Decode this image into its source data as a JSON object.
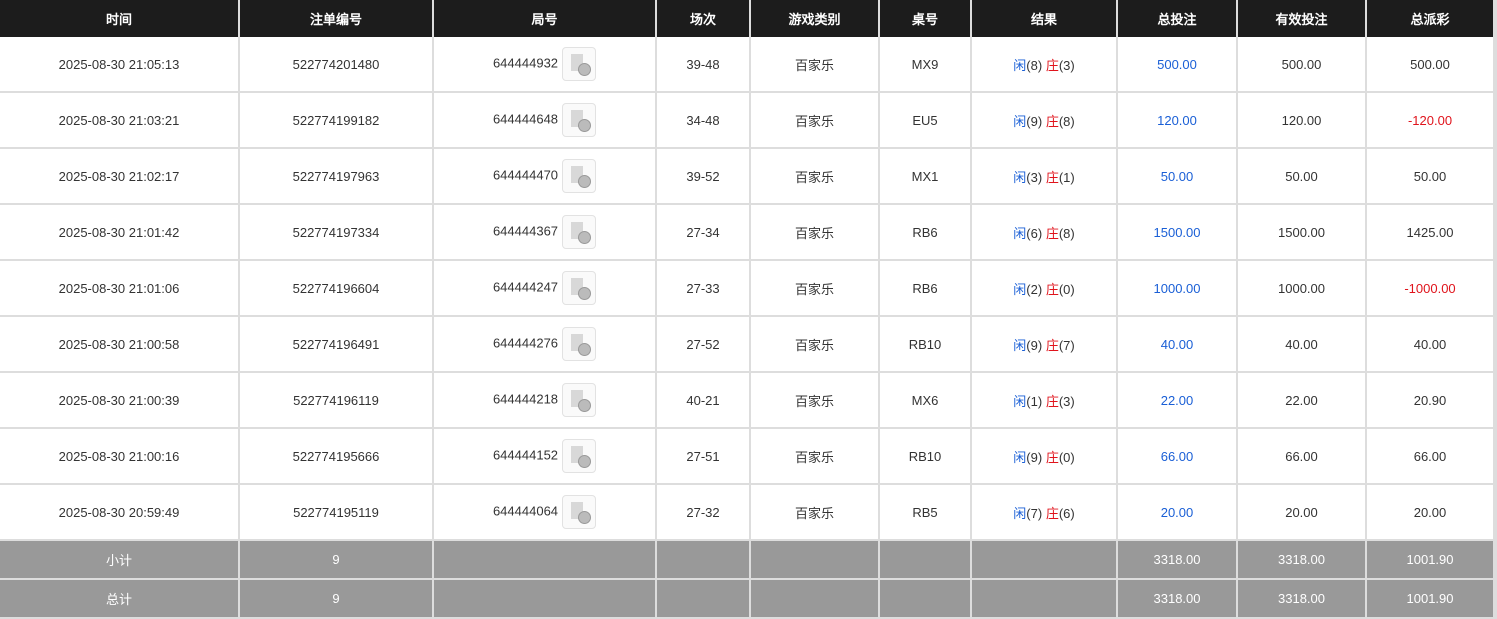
{
  "headers": [
    "时间",
    "注单编号",
    "局号",
    "场次",
    "游戏类别",
    "桌号",
    "结果",
    "总投注",
    "有效投注",
    "总派彩"
  ],
  "rows": [
    {
      "time": "2025-08-30 21:05:13",
      "order": "522774201480",
      "round": "644444932",
      "session": "39-48",
      "game": "百家乐",
      "table": "MX9",
      "player": "闲",
      "player_pts": "(8)",
      "banker": "庄",
      "banker_pts": "(3)",
      "bet": "500.00",
      "valid": "500.00",
      "payout": "500.00",
      "neg": false
    },
    {
      "time": "2025-08-30 21:03:21",
      "order": "522774199182",
      "round": "644444648",
      "session": "34-48",
      "game": "百家乐",
      "table": "EU5",
      "player": "闲",
      "player_pts": "(9)",
      "banker": "庄",
      "banker_pts": "(8)",
      "bet": "120.00",
      "valid": "120.00",
      "payout": "-120.00",
      "neg": true
    },
    {
      "time": "2025-08-30 21:02:17",
      "order": "522774197963",
      "round": "644444470",
      "session": "39-52",
      "game": "百家乐",
      "table": "MX1",
      "player": "闲",
      "player_pts": "(3)",
      "banker": "庄",
      "banker_pts": "(1)",
      "bet": "50.00",
      "valid": "50.00",
      "payout": "50.00",
      "neg": false
    },
    {
      "time": "2025-08-30 21:01:42",
      "order": "522774197334",
      "round": "644444367",
      "session": "27-34",
      "game": "百家乐",
      "table": "RB6",
      "player": "闲",
      "player_pts": "(6)",
      "banker": "庄",
      "banker_pts": "(8)",
      "bet": "1500.00",
      "valid": "1500.00",
      "payout": "1425.00",
      "neg": false
    },
    {
      "time": "2025-08-30 21:01:06",
      "order": "522774196604",
      "round": "644444247",
      "session": "27-33",
      "game": "百家乐",
      "table": "RB6",
      "player": "闲",
      "player_pts": "(2)",
      "banker": "庄",
      "banker_pts": "(0)",
      "bet": "1000.00",
      "valid": "1000.00",
      "payout": "-1000.00",
      "neg": true
    },
    {
      "time": "2025-08-30 21:00:58",
      "order": "522774196491",
      "round": "644444276",
      "session": "27-52",
      "game": "百家乐",
      "table": "RB10",
      "player": "闲",
      "player_pts": "(9)",
      "banker": "庄",
      "banker_pts": "(7)",
      "bet": "40.00",
      "valid": "40.00",
      "payout": "40.00",
      "neg": false
    },
    {
      "time": "2025-08-30 21:00:39",
      "order": "522774196119",
      "round": "644444218",
      "session": "40-21",
      "game": "百家乐",
      "table": "MX6",
      "player": "闲",
      "player_pts": "(1)",
      "banker": "庄",
      "banker_pts": "(3)",
      "bet": "22.00",
      "valid": "22.00",
      "payout": "20.90",
      "neg": false
    },
    {
      "time": "2025-08-30 21:00:16",
      "order": "522774195666",
      "round": "644444152",
      "session": "27-51",
      "game": "百家乐",
      "table": "RB10",
      "player": "闲",
      "player_pts": "(9)",
      "banker": "庄",
      "banker_pts": "(0)",
      "bet": "66.00",
      "valid": "66.00",
      "payout": "66.00",
      "neg": false
    },
    {
      "time": "2025-08-30 20:59:49",
      "order": "522774195119",
      "round": "644444064",
      "session": "27-32",
      "game": "百家乐",
      "table": "RB5",
      "player": "闲",
      "player_pts": "(7)",
      "banker": "庄",
      "banker_pts": "(6)",
      "bet": "20.00",
      "valid": "20.00",
      "payout": "20.00",
      "neg": false
    }
  ],
  "subtotal": {
    "label": "小计",
    "count": "9",
    "bet": "3318.00",
    "valid": "3318.00",
    "payout": "1001.90"
  },
  "total": {
    "label": "总计",
    "count": "9",
    "bet": "3318.00",
    "valid": "3318.00",
    "payout": "1001.90"
  },
  "colors": {
    "blue": "#1a5fd6",
    "red": "#e0141c",
    "header_bg": "#1c1c1c",
    "summary_bg": "#999999"
  },
  "icons": {
    "round_icon": "video-replay-icon"
  }
}
